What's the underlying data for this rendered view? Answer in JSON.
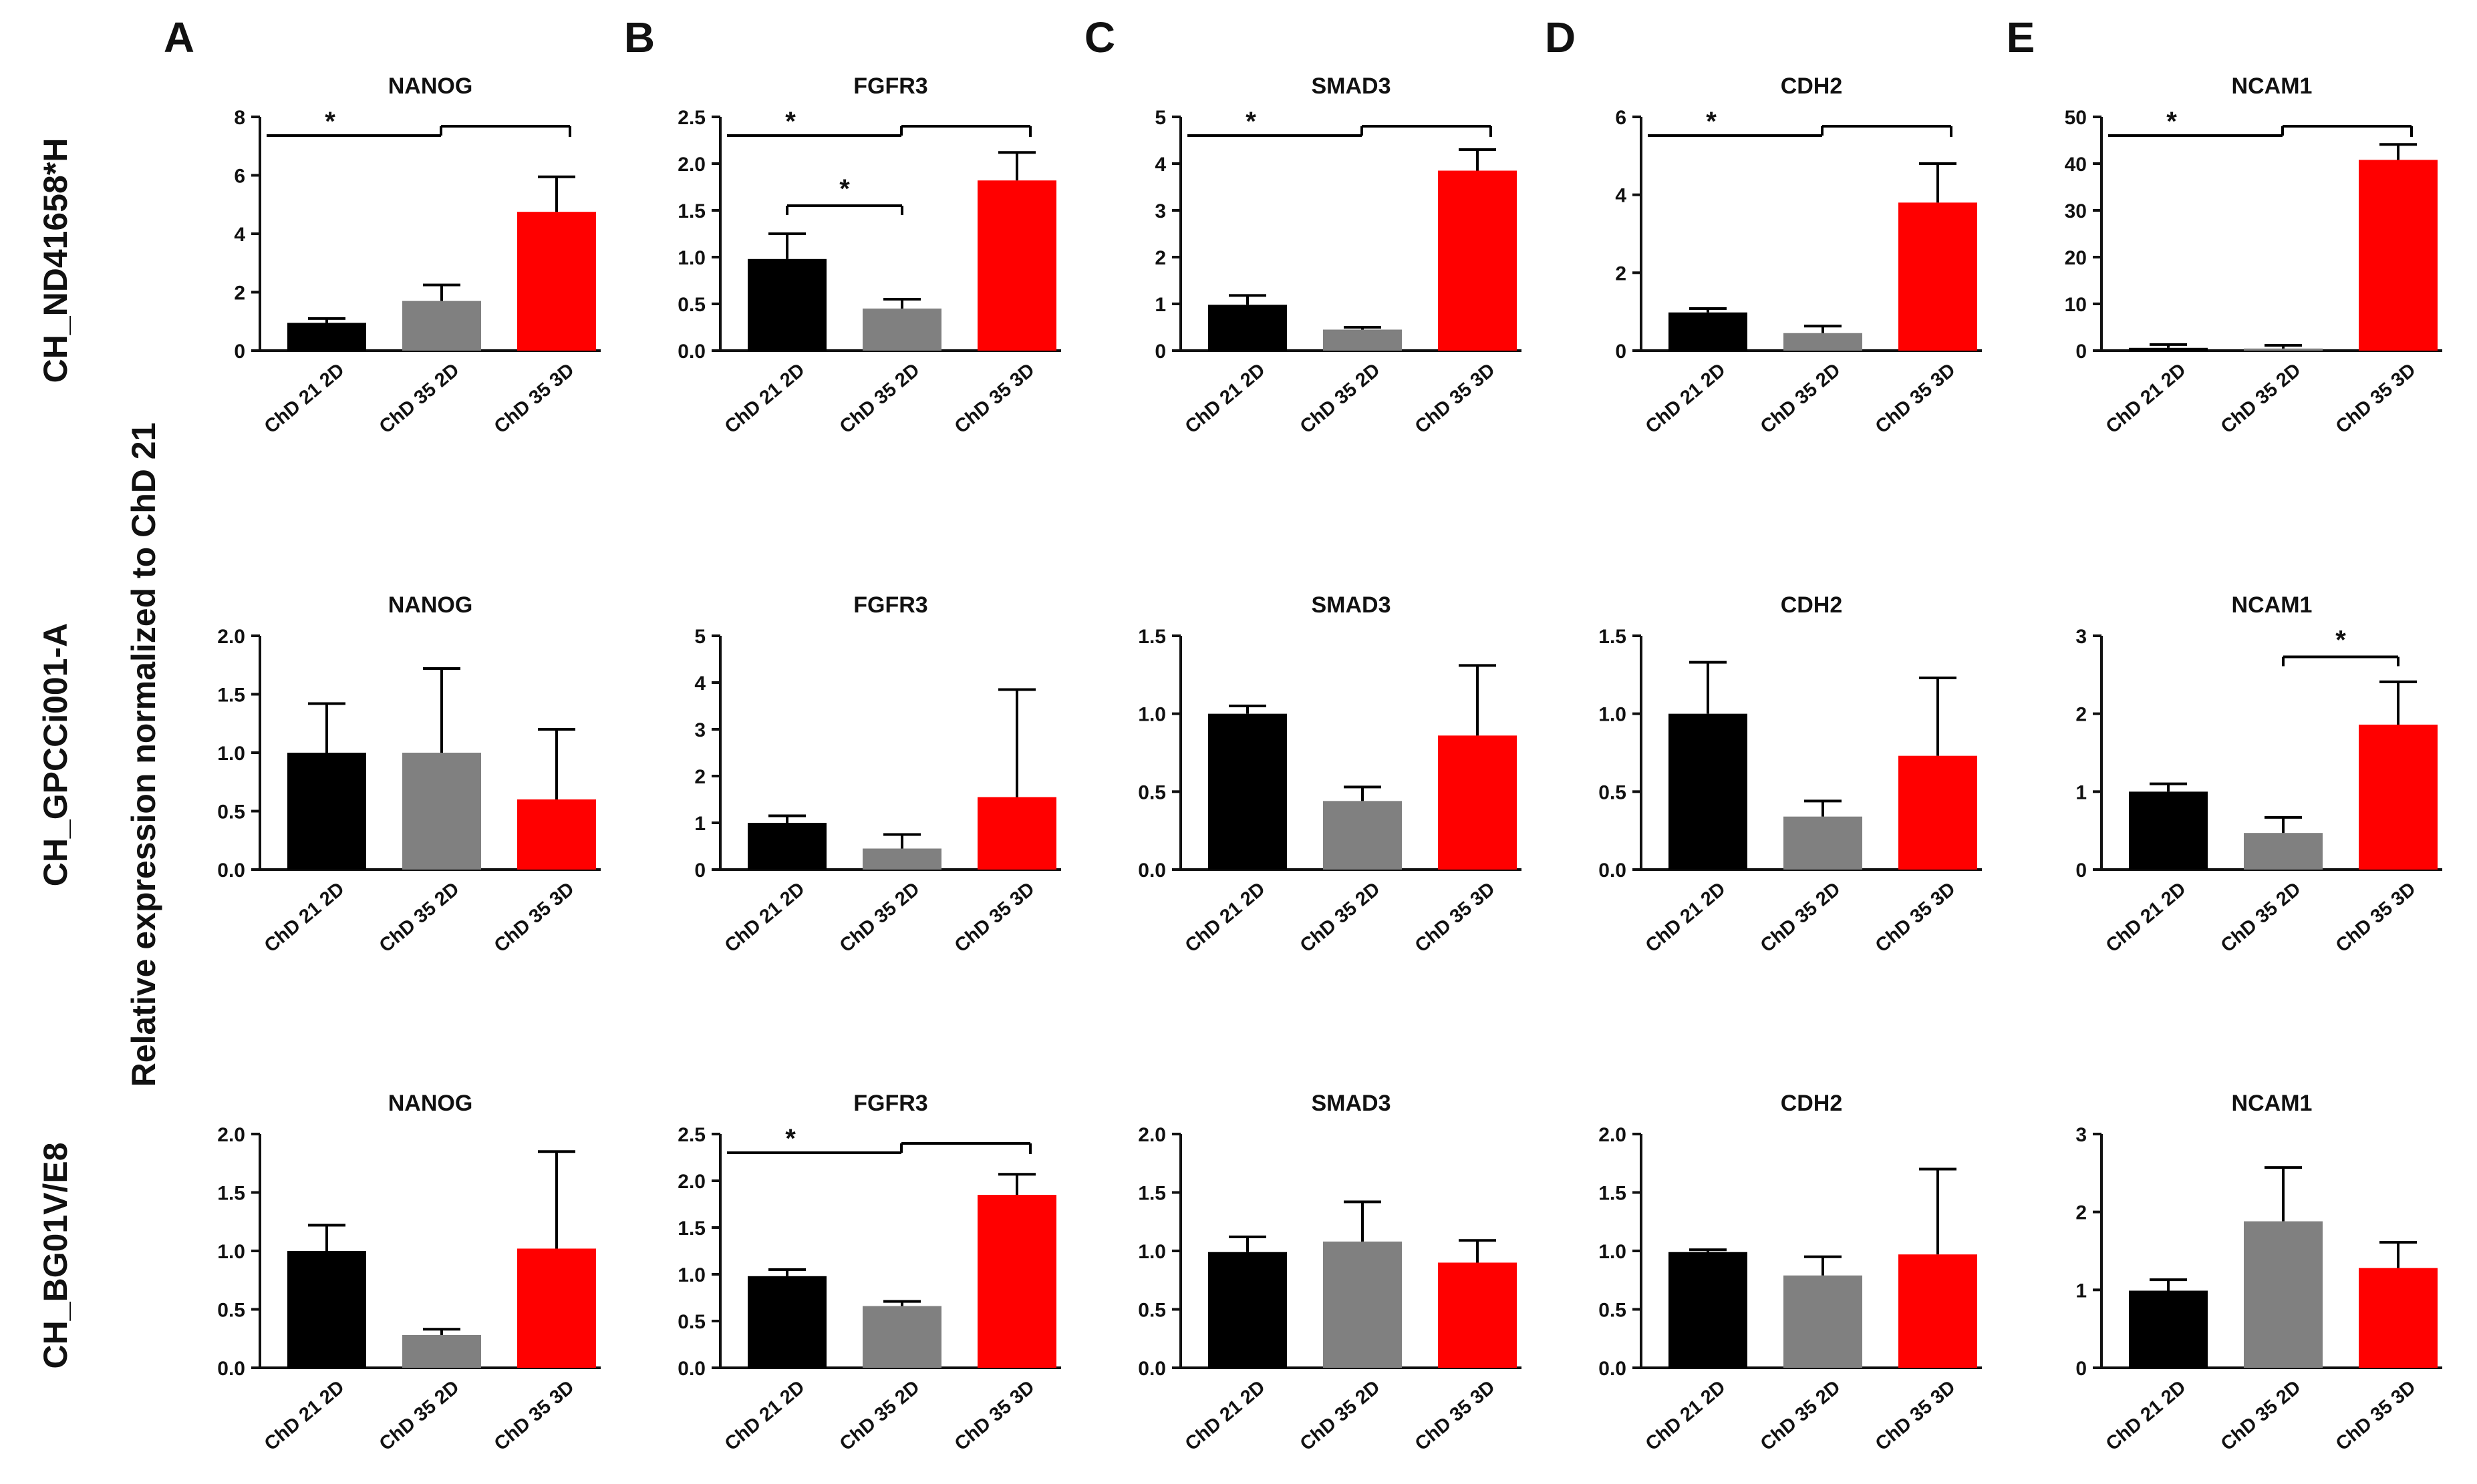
{
  "figure": {
    "ylabel": "Relative expression normalized to ChD 21",
    "panel_letters": [
      "A",
      "B",
      "C",
      "D",
      "E"
    ],
    "row_labels": [
      "CH_ND41658*H",
      "CH_GPCCi001-A",
      "CH_BG01V/E8"
    ],
    "colors": {
      "ChD 21 2D": "#000000",
      "ChD 35 2D": "#808080",
      "ChD 35 3D": "#ff0000",
      "axis": "#111111"
    },
    "significance_symbol": "*"
  },
  "chart_data": [
    {
      "type": "bar",
      "row": 0,
      "col": 0,
      "title": "NANOG",
      "categories": [
        "ChD 21 2D",
        "ChD 35 2D",
        "ChD 35 3D"
      ],
      "values": [
        0.95,
        1.7,
        4.75
      ],
      "errors": [
        0.15,
        0.55,
        1.2
      ],
      "ylim": [
        0,
        8
      ],
      "yticks": [
        "0",
        "2",
        "4",
        "6",
        "8"
      ],
      "significance": [
        {
          "type": "group",
          "label": "*"
        }
      ]
    },
    {
      "type": "bar",
      "row": 0,
      "col": 1,
      "title": "FGFR3",
      "categories": [
        "ChD 21 2D",
        "ChD 35 2D",
        "ChD 35 3D"
      ],
      "values": [
        0.98,
        0.45,
        1.82
      ],
      "errors": [
        0.27,
        0.1,
        0.3
      ],
      "ylim": [
        0,
        2.5
      ],
      "yticks": [
        "0.0",
        "0.5",
        "1.0",
        "1.5",
        "2.0",
        "2.5"
      ],
      "significance": [
        {
          "type": "group",
          "label": "*"
        },
        {
          "type": "pair",
          "from": 0,
          "to": 1,
          "label": "*"
        }
      ]
    },
    {
      "type": "bar",
      "row": 0,
      "col": 2,
      "title": "SMAD3",
      "categories": [
        "ChD 21 2D",
        "ChD 35 2D",
        "ChD 35 3D"
      ],
      "values": [
        0.98,
        0.45,
        3.85
      ],
      "errors": [
        0.2,
        0.05,
        0.45
      ],
      "ylim": [
        0,
        5
      ],
      "yticks": [
        "0",
        "1",
        "2",
        "3",
        "4",
        "5"
      ],
      "significance": [
        {
          "type": "group",
          "label": "*"
        }
      ]
    },
    {
      "type": "bar",
      "row": 0,
      "col": 3,
      "title": "CDH2",
      "categories": [
        "ChD 21 2D",
        "ChD 35 2D",
        "ChD 35 3D"
      ],
      "values": [
        0.98,
        0.45,
        3.8
      ],
      "errors": [
        0.1,
        0.18,
        1.0
      ],
      "ylim": [
        0,
        6
      ],
      "yticks": [
        "0",
        "2",
        "4",
        "6"
      ],
      "significance": [
        {
          "type": "group",
          "label": "*"
        }
      ]
    },
    {
      "type": "bar",
      "row": 0,
      "col": 4,
      "title": "NCAM1",
      "categories": [
        "ChD 21 2D",
        "ChD 35 2D",
        "ChD 35 3D"
      ],
      "values": [
        0.6,
        0.45,
        40.8
      ],
      "errors": [
        0.7,
        0.7,
        3.3
      ],
      "ylim": [
        0,
        50
      ],
      "yticks": [
        "0",
        "10",
        "20",
        "30",
        "40",
        "50"
      ],
      "significance": [
        {
          "type": "group",
          "label": "*"
        }
      ]
    },
    {
      "type": "bar",
      "row": 1,
      "col": 0,
      "title": "NANOG",
      "categories": [
        "ChD 21 2D",
        "ChD 35 2D",
        "ChD 35 3D"
      ],
      "values": [
        1.0,
        1.0,
        0.6
      ],
      "errors": [
        0.42,
        0.72,
        0.6
      ],
      "ylim": [
        0,
        2
      ],
      "yticks": [
        "0.0",
        "0.5",
        "1.0",
        "1.5",
        "2.0"
      ],
      "significance": []
    },
    {
      "type": "bar",
      "row": 1,
      "col": 1,
      "title": "FGFR3",
      "categories": [
        "ChD 21 2D",
        "ChD 35 2D",
        "ChD 35 3D"
      ],
      "values": [
        1.0,
        0.45,
        1.55
      ],
      "errors": [
        0.15,
        0.3,
        2.3
      ],
      "ylim": [
        0,
        5
      ],
      "yticks": [
        "0",
        "1",
        "2",
        "3",
        "4",
        "5"
      ],
      "significance": []
    },
    {
      "type": "bar",
      "row": 1,
      "col": 2,
      "title": "SMAD3",
      "categories": [
        "ChD 21 2D",
        "ChD 35 2D",
        "ChD 35 3D"
      ],
      "values": [
        1.0,
        0.44,
        0.86
      ],
      "errors": [
        0.05,
        0.09,
        0.45
      ],
      "ylim": [
        0,
        1.5
      ],
      "yticks": [
        "0.0",
        "0.5",
        "1.0",
        "1.5"
      ],
      "significance": []
    },
    {
      "type": "bar",
      "row": 1,
      "col": 3,
      "title": "CDH2",
      "categories": [
        "ChD 21 2D",
        "ChD 35 2D",
        "ChD 35 3D"
      ],
      "values": [
        1.0,
        0.34,
        0.73
      ],
      "errors": [
        0.33,
        0.1,
        0.5
      ],
      "ylim": [
        0,
        1.5
      ],
      "yticks": [
        "0.0",
        "0.5",
        "1.0",
        "1.5"
      ],
      "significance": []
    },
    {
      "type": "bar",
      "row": 1,
      "col": 4,
      "title": "NCAM1",
      "categories": [
        "ChD 21 2D",
        "ChD 35 2D",
        "ChD 35 3D"
      ],
      "values": [
        1.0,
        0.47,
        1.86
      ],
      "errors": [
        0.1,
        0.2,
        0.55
      ],
      "ylim": [
        0,
        3
      ],
      "yticks": [
        "0",
        "1",
        "2",
        "3"
      ],
      "significance": [
        {
          "type": "pair",
          "from": 1,
          "to": 2,
          "label": "*"
        }
      ]
    },
    {
      "type": "bar",
      "row": 2,
      "col": 0,
      "title": "NANOG",
      "categories": [
        "ChD 21 2D",
        "ChD 35 2D",
        "ChD 35 3D"
      ],
      "values": [
        1.0,
        0.28,
        1.02
      ],
      "errors": [
        0.22,
        0.05,
        0.83
      ],
      "ylim": [
        0,
        2
      ],
      "yticks": [
        "0.0",
        "0.5",
        "1.0",
        "1.5",
        "2.0"
      ],
      "significance": []
    },
    {
      "type": "bar",
      "row": 2,
      "col": 1,
      "title": "FGFR3",
      "categories": [
        "ChD 21 2D",
        "ChD 35 2D",
        "ChD 35 3D"
      ],
      "values": [
        0.98,
        0.66,
        1.85
      ],
      "errors": [
        0.07,
        0.05,
        0.22
      ],
      "ylim": [
        0,
        2.5
      ],
      "yticks": [
        "0.0",
        "0.5",
        "1.0",
        "1.5",
        "2.0",
        "2.5"
      ],
      "significance": [
        {
          "type": "group",
          "label": "*"
        }
      ]
    },
    {
      "type": "bar",
      "row": 2,
      "col": 2,
      "title": "SMAD3",
      "categories": [
        "ChD 21 2D",
        "ChD 35 2D",
        "ChD 35 3D"
      ],
      "values": [
        0.99,
        1.08,
        0.9
      ],
      "errors": [
        0.13,
        0.34,
        0.19
      ],
      "ylim": [
        0,
        2
      ],
      "yticks": [
        "0.0",
        "0.5",
        "1.0",
        "1.5",
        "2.0"
      ],
      "significance": []
    },
    {
      "type": "bar",
      "row": 2,
      "col": 3,
      "title": "CDH2",
      "categories": [
        "ChD 21 2D",
        "ChD 35 2D",
        "ChD 35 3D"
      ],
      "values": [
        0.99,
        0.79,
        0.97
      ],
      "errors": [
        0.02,
        0.16,
        0.73
      ],
      "ylim": [
        0,
        2
      ],
      "yticks": [
        "0.0",
        "0.5",
        "1.0",
        "1.5",
        "2.0"
      ],
      "significance": []
    },
    {
      "type": "bar",
      "row": 2,
      "col": 4,
      "title": "NCAM1",
      "categories": [
        "ChD 21 2D",
        "ChD 35 2D",
        "ChD 35 3D"
      ],
      "values": [
        0.99,
        1.88,
        1.28
      ],
      "errors": [
        0.14,
        0.69,
        0.33
      ],
      "ylim": [
        0,
        3
      ],
      "yticks": [
        "0",
        "1",
        "2",
        "3"
      ],
      "significance": []
    }
  ]
}
